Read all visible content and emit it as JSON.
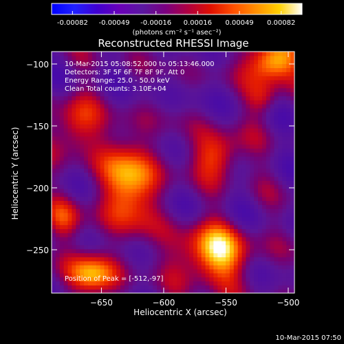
{
  "colorbar": {
    "ticks": [
      "-0.00082",
      "-0.00049",
      "-0.00016",
      "0.00016",
      "0.00049",
      "0.00082"
    ],
    "range": [
      -0.00082,
      0.00082
    ],
    "units_label": "(photons cm⁻² s⁻¹ asec⁻²)",
    "stops": [
      "#0000ff",
      "#2020ff",
      "#4000d0",
      "#6a00b8",
      "#5a18a0",
      "#7a0080",
      "#b00040",
      "#e01000",
      "#ff5000",
      "#ff9000",
      "#ffd000",
      "#ffffff"
    ]
  },
  "chart_data": {
    "type": "heatmap",
    "title": "Reconstructed RHESSI Image",
    "xlabel": "Heliocentric X (arcsec)",
    "ylabel": "Heliocentric Y (arcsec)",
    "xlim": [
      -690,
      -495
    ],
    "ylim": [
      -285,
      -90
    ],
    "xticks": [
      -650,
      -600,
      -550,
      -500
    ],
    "yticks": [
      -100,
      -150,
      -200,
      -250
    ],
    "xtick_labels": [
      "−650",
      "−600",
      "−550",
      "−500"
    ],
    "ytick_labels": [
      "−100",
      "−150",
      "−200",
      "−250"
    ],
    "annotations": [
      "10-Mar-2015 05:08:52.000 to 05:13:46.000",
      "Detectors: 3F 5F 6F 7F 8F 9F, Att 0",
      "Energy Range: 25.0 - 50.0 keV",
      "Clean    Total counts: 3.10E+04"
    ],
    "peak_label": "Position of Peak = [-512,-97]",
    "peak_position": [
      -512,
      -97
    ],
    "sources": [
      {
        "x": -512,
        "y": -97,
        "sx": 14,
        "sy": 12,
        "amp": 0.00082
      },
      {
        "x": -628,
        "y": -196,
        "sx": 16,
        "sy": 26,
        "amp": 0.00066
      },
      {
        "x": -560,
        "y": -253,
        "sx": 20,
        "sy": 16,
        "amp": 0.00074
      },
      {
        "x": -556,
        "y": -173,
        "sx": 14,
        "sy": 13,
        "amp": 0.0005
      },
      {
        "x": -672,
        "y": -150,
        "sx": 13,
        "sy": 16,
        "amp": 0.00046
      },
      {
        "x": -658,
        "y": -270,
        "sx": 14,
        "sy": 12,
        "amp": 0.00062
      },
      {
        "x": -680,
        "y": -225,
        "sx": 10,
        "sy": 12,
        "amp": 0.00034
      },
      {
        "x": -520,
        "y": -128,
        "sx": 10,
        "sy": 10,
        "amp": 0.0003
      }
    ]
  },
  "timestamp": "10-Mar-2015 07:50"
}
